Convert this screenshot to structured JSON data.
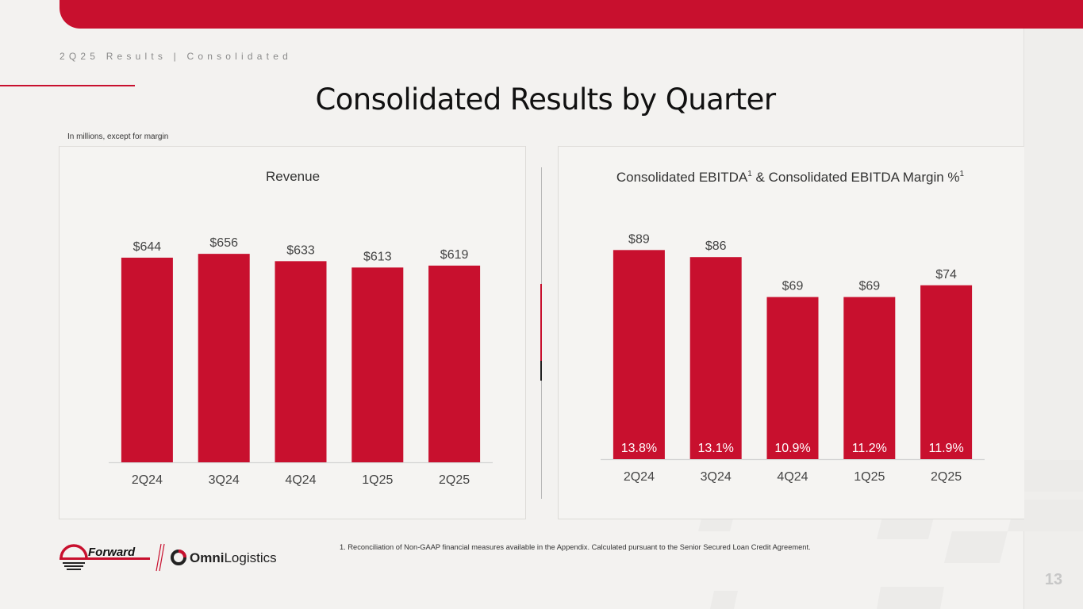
{
  "header": {
    "section_label": "2Q25 Results | Consolidated",
    "title": "Consolidated Results by Quarter",
    "units_note": "In millions, except for margin"
  },
  "chart_data": [
    {
      "type": "bar",
      "title": "Revenue",
      "categories": [
        "2Q24",
        "3Q24",
        "4Q24",
        "1Q25",
        "2Q25"
      ],
      "values": [
        644,
        656,
        633,
        613,
        619
      ],
      "value_labels": [
        "$644",
        "$656",
        "$633",
        "$613",
        "$619"
      ],
      "ylim": [
        0,
        700
      ],
      "bar_color": "#c8102e"
    },
    {
      "type": "bar",
      "title_main": "Consolidated EBITDA",
      "title_mid": " & Consolidated EBITDA Margin %",
      "title_sup": "1",
      "categories": [
        "2Q24",
        "3Q24",
        "4Q24",
        "1Q25",
        "2Q25"
      ],
      "values": [
        89,
        86,
        69,
        69,
        74
      ],
      "value_labels": [
        "$89",
        "$86",
        "$69",
        "$69",
        "$74"
      ],
      "margins": [
        13.8,
        13.1,
        10.9,
        11.2,
        11.9
      ],
      "margin_labels": [
        "13.8%",
        "13.1%",
        "10.9%",
        "11.2%",
        "11.9%"
      ],
      "ylim": [
        0,
        107
      ],
      "bar_color": "#c8102e"
    }
  ],
  "footnote": "1.  Reconciliation of Non-GAAP financial measures available in the Appendix. Calculated pursuant to the Senior Secured Loan Credit Agreement.",
  "brand": {
    "logo1": "Forward",
    "logo2_bold": "Omni",
    "logo2_light": "Logistics"
  },
  "page_number": "13",
  "colors": {
    "accent": "#c8102e",
    "background": "#f3f2f0"
  }
}
